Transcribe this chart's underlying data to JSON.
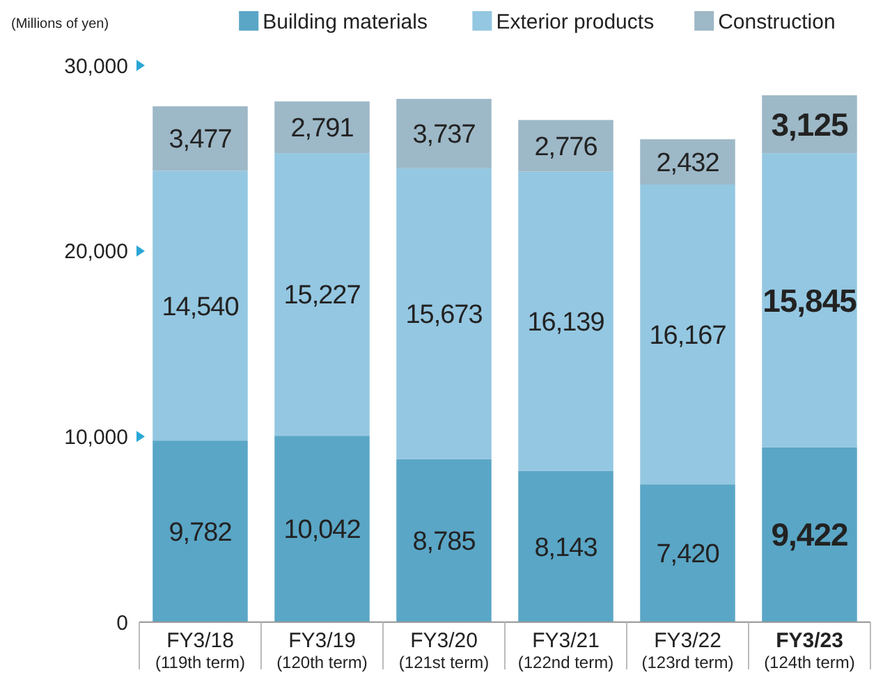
{
  "chart_data": {
    "type": "bar",
    "stacked": true,
    "ylabel": "(Millions of yen)",
    "categories": [
      "FY3/18\n(119th term)",
      "FY3/19\n(120th term)",
      "FY3/20\n(121st term)",
      "FY3/21\n(122nd term)",
      "FY3/22\n(123rd term)",
      "FY3/23\n(124th term)"
    ],
    "series": [
      {
        "name": "Building materials",
        "color": "#5aa6c6",
        "values": [
          9782,
          10042,
          8785,
          8143,
          7420,
          9422
        ],
        "value_labels": [
          "9,782",
          "10,042",
          "8,785",
          "8,143",
          "7,420",
          "9,422"
        ]
      },
      {
        "name": "Exterior products",
        "color": "#94c7e1",
        "values": [
          14540,
          15227,
          15673,
          16139,
          16167,
          15845
        ],
        "value_labels": [
          "14,540",
          "15,227",
          "15,673",
          "16,139",
          "16,167",
          "15,845"
        ]
      },
      {
        "name": "Construction",
        "color": "#9db8c7",
        "values": [
          3477,
          2791,
          3737,
          2776,
          2432,
          3125
        ],
        "value_labels": [
          "3,477",
          "2,791",
          "3,737",
          "2,776",
          "2,432",
          "3,125"
        ]
      }
    ],
    "ylim": [
      0,
      30000
    ],
    "yticks": [
      {
        "value": 0,
        "label": "0"
      },
      {
        "value": 10000,
        "label": "10,000"
      },
      {
        "value": 20000,
        "label": "20,000"
      },
      {
        "value": 30000,
        "label": "30,000"
      }
    ],
    "legend": "top right",
    "grid": false
  }
}
